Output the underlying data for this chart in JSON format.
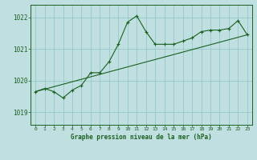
{
  "title": "Graphe pression niveau de la mer (hPa)",
  "background_color": "#c0dfe0",
  "line_color": "#1a6020",
  "grid_color": "#96c8c8",
  "xlim": [
    -0.5,
    23.5
  ],
  "ylim": [
    1018.6,
    1022.4
  ],
  "yticks": [
    1019,
    1020,
    1021,
    1022
  ],
  "xticks": [
    0,
    1,
    2,
    3,
    4,
    5,
    6,
    7,
    8,
    9,
    10,
    11,
    12,
    13,
    14,
    15,
    16,
    17,
    18,
    19,
    20,
    21,
    22,
    23
  ],
  "series1_x": [
    0,
    1,
    2,
    3,
    4,
    5,
    6,
    7,
    8,
    9,
    10,
    11,
    12,
    13,
    14,
    15,
    16,
    17,
    18,
    19,
    20,
    21,
    22,
    23
  ],
  "series1_y": [
    1019.65,
    1019.75,
    1019.65,
    1019.45,
    1019.7,
    1019.85,
    1020.25,
    1020.25,
    1020.6,
    1021.15,
    1021.85,
    1022.05,
    1021.55,
    1021.15,
    1021.15,
    1021.15,
    1021.25,
    1021.35,
    1021.55,
    1021.6,
    1021.6,
    1021.65,
    1021.9,
    1021.45
  ],
  "series2_x": [
    0,
    23
  ],
  "series2_y": [
    1019.65,
    1021.45
  ]
}
